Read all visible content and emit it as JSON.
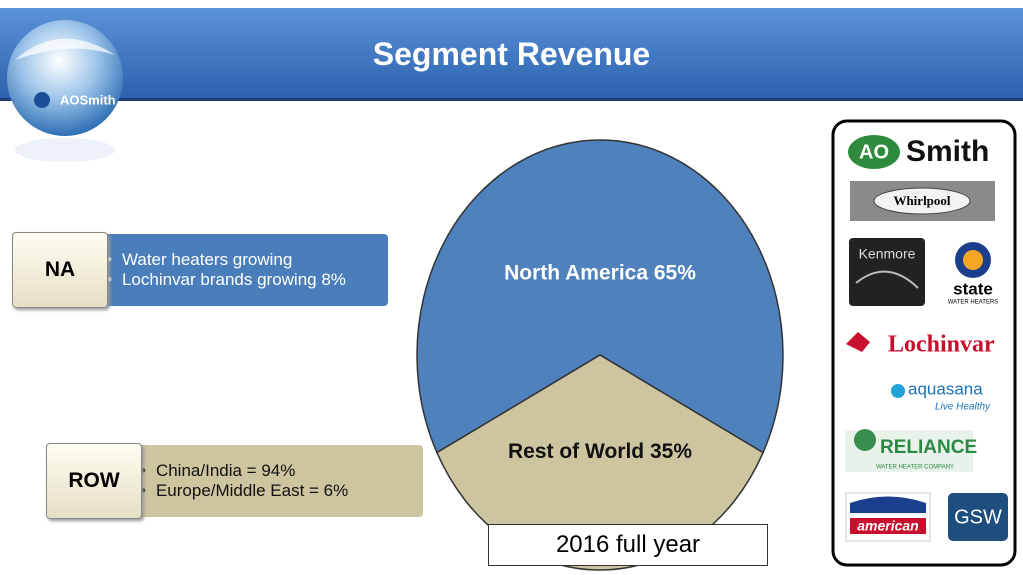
{
  "header": {
    "title": "Segment Revenue",
    "logo": "AOSmith"
  },
  "segments": [
    {
      "label": "NA",
      "bullets": [
        "Water heaters growing",
        "Lochinvar brands growing 8%"
      ]
    },
    {
      "label": "ROW",
      "bullets": [
        "China/India = 94%",
        "Europe/Middle East = 6%"
      ]
    }
  ],
  "chart_data": {
    "type": "pie",
    "categories": [
      "North America",
      "Rest of World"
    ],
    "values": [
      65,
      35
    ],
    "value_labels": [
      "65%",
      "35%"
    ],
    "colors": [
      "#4f81bd",
      "#cdc5a0"
    ],
    "caption": "2016 full year"
  },
  "brands": {
    "aosmith": [
      "AO",
      "Smith"
    ],
    "whirlpool": "Whirlpool",
    "kenmore": "Kenmore",
    "state": [
      "state",
      "WATER HEATERS"
    ],
    "lochinvar": "Lochinvar",
    "aquasana": [
      "aquasana",
      "Live Healthy"
    ],
    "reliance": [
      "RELIANCE",
      "WATER HEATER COMPANY"
    ],
    "american": "american",
    "gsw": "GSW"
  }
}
